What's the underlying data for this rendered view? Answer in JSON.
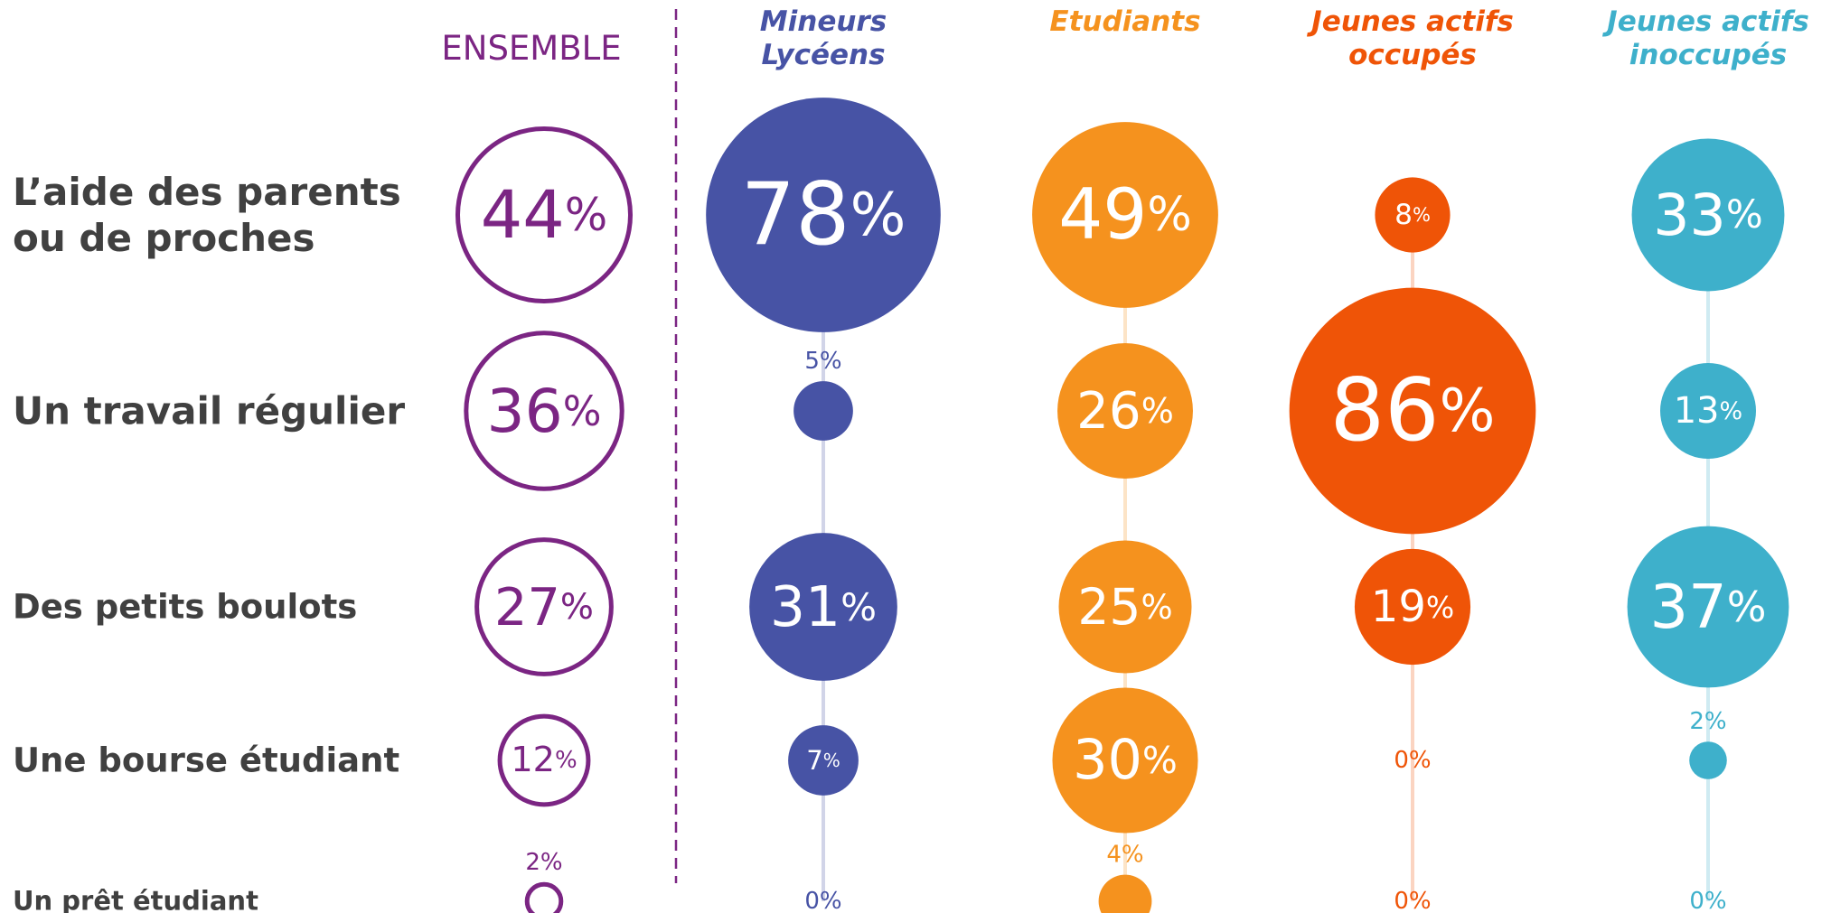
{
  "chart_data": {
    "type": "bubble",
    "categories": [
      "L’aide des parents\nou de proches",
      "Un travail régulier",
      "Des petits boulots",
      "Une bourse étudiant",
      "Un prêt étudiant"
    ],
    "series": [
      {
        "name": "ENSEMBLE",
        "color": "#7b2583",
        "fill": false,
        "values": [
          44,
          36,
          27,
          12,
          2
        ],
        "value_labels": [
          "44%",
          "36%",
          "27%",
          "12%",
          "2%"
        ]
      },
      {
        "name": "Mineurs\nLycéens",
        "color": "#4753a5",
        "fill": true,
        "values": [
          78,
          5,
          31,
          7,
          0
        ],
        "value_labels": [
          "78%",
          "5%",
          "31%",
          "7%",
          "0%"
        ]
      },
      {
        "name": "Etudiants",
        "color": "#f5921e",
        "fill": true,
        "values": [
          49,
          26,
          25,
          30,
          4
        ],
        "value_labels": [
          "49%",
          "26%",
          "25%",
          "30%",
          "4%"
        ]
      },
      {
        "name": "Jeunes actifs\noccupés",
        "color": "#ef5407",
        "fill": true,
        "values": [
          8,
          86,
          19,
          0,
          0
        ],
        "value_labels": [
          "8%",
          "86%",
          "19%",
          "0%",
          "0%"
        ]
      },
      {
        "name": "Jeunes actifs\ninoccupés",
        "color": "#3eb0cb",
        "fill": true,
        "values": [
          33,
          13,
          37,
          2,
          0
        ],
        "value_labels": [
          "33%",
          "13%",
          "37%",
          "2%",
          "0%"
        ]
      }
    ]
  }
}
